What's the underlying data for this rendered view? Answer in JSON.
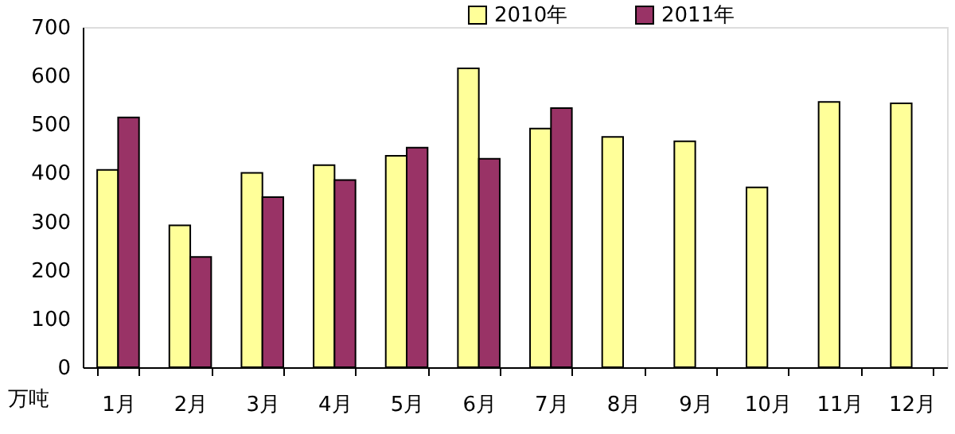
{
  "chart_data": {
    "type": "bar",
    "ylabel": "万吨",
    "categories": [
      "1月",
      "2月",
      "3月",
      "4月",
      "5月",
      "6月",
      "7月",
      "8月",
      "9月",
      "10月",
      "11月",
      "12月"
    ],
    "series": [
      {
        "name": "2010年",
        "color": "#ffff99",
        "values": [
          406,
          292,
          400,
          416,
          435,
          615,
          491,
          474,
          465,
          370,
          546,
          543
        ]
      },
      {
        "name": "2011年",
        "color": "#993366",
        "values": [
          514,
          227,
          350,
          385,
          452,
          429,
          533,
          null,
          null,
          null,
          null,
          null
        ]
      }
    ],
    "ylim": [
      0,
      700
    ],
    "yticks": [
      0,
      100,
      200,
      300,
      400,
      500,
      600,
      700
    ],
    "grid": false,
    "legend": "top"
  }
}
